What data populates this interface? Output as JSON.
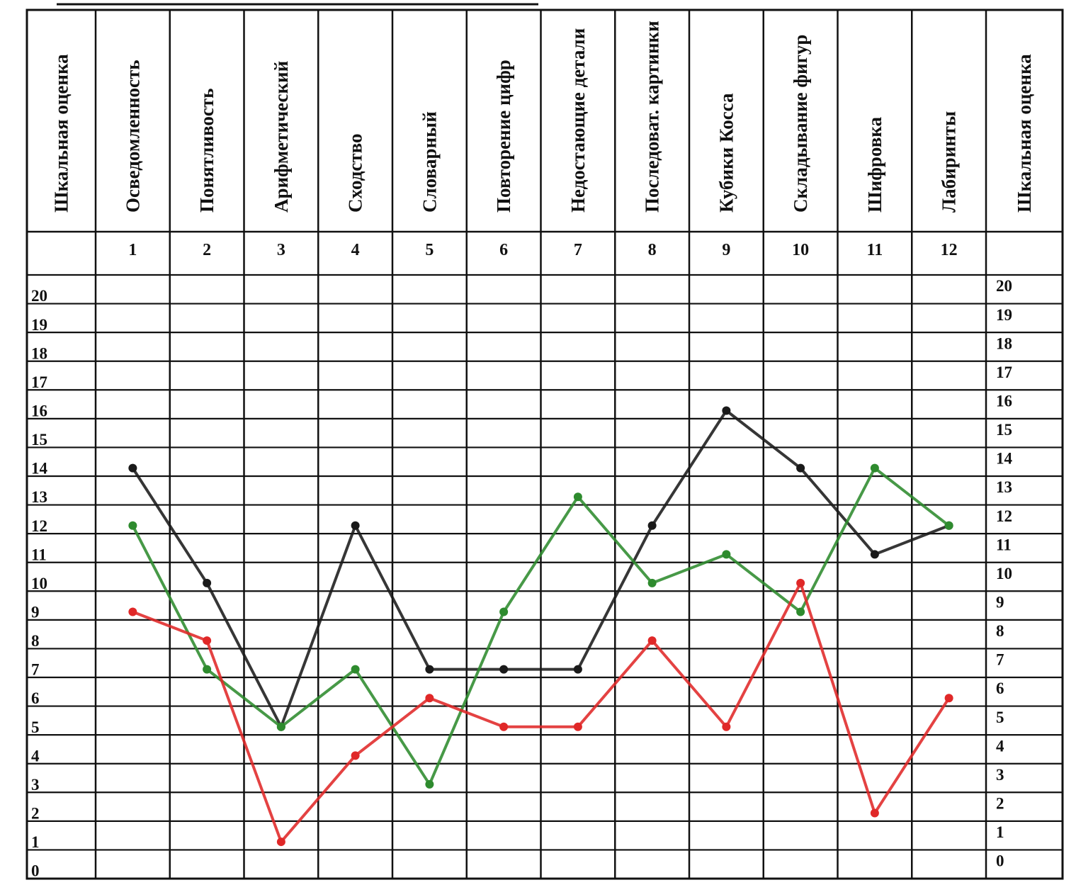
{
  "chart_data": {
    "type": "line",
    "scale_label_left": "Шкальная оценка",
    "scale_label_right": "Шкальная оценка",
    "subtests": [
      {
        "number": "1",
        "name": "Осведомленность"
      },
      {
        "number": "2",
        "name": "Понятливость"
      },
      {
        "number": "3",
        "name": "Арифметический"
      },
      {
        "number": "4",
        "name": "Сходство"
      },
      {
        "number": "5",
        "name": "Словарный"
      },
      {
        "number": "6",
        "name": "Повторение цифр"
      },
      {
        "number": "7",
        "name": "Недостающие детали"
      },
      {
        "number": "8",
        "name": "Последоват. картинки"
      },
      {
        "number": "9",
        "name": "Кубики Косса"
      },
      {
        "number": "10",
        "name": "Складывание фигур"
      },
      {
        "number": "11",
        "name": "Шифровка"
      },
      {
        "number": "12",
        "name": "Лабиринты"
      }
    ],
    "scale_ticks": [
      "0",
      "1",
      "2",
      "3",
      "4",
      "5",
      "6",
      "7",
      "8",
      "9",
      "10",
      "11",
      "12",
      "13",
      "14",
      "15",
      "16",
      "17",
      "18",
      "19",
      "20"
    ],
    "ylim": [
      0,
      20
    ],
    "series": [
      {
        "color": "#1a1a1a",
        "values": [
          14,
          10,
          5,
          12,
          7,
          7,
          7,
          12,
          16,
          14,
          11,
          12
        ]
      },
      {
        "color": "#2e8b2e",
        "values": [
          12,
          7,
          5,
          7,
          3,
          9,
          13,
          10,
          11,
          9,
          14,
          12
        ]
      },
      {
        "color": "#e02828",
        "values": [
          9,
          8,
          1,
          4,
          6,
          5,
          5,
          8,
          5,
          10,
          2,
          6
        ]
      }
    ]
  }
}
